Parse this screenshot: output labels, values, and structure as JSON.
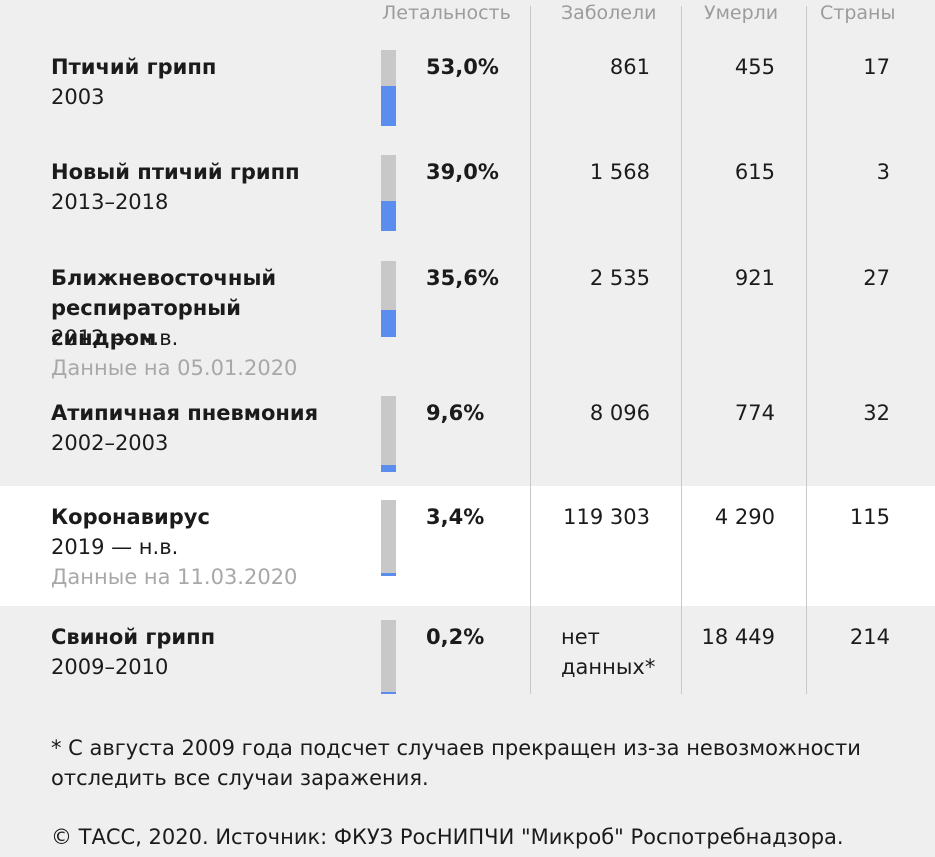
{
  "headers": {
    "lethality": "Летальность",
    "cases": "Заболели",
    "deaths": "Умерли",
    "countries": "Страны"
  },
  "colors": {
    "background": "#efefef",
    "highlight_row": "#ffffff",
    "bar_track": "#c8c8c8",
    "bar_fill": "#5b8def"
  },
  "chart_data": {
    "type": "table",
    "columns": [
      "Летальность",
      "Заболели",
      "Умерли",
      "Страны"
    ],
    "rows": [
      {
        "name": "Птичий грипп",
        "years": "2003",
        "note": "",
        "lethality": 53.0,
        "lethality_label": "53,0%",
        "cases": "861",
        "deaths": "455",
        "countries": "17",
        "highlight": false
      },
      {
        "name": "Новый птичий грипп",
        "years": "2013–2018",
        "note": "",
        "lethality": 39.0,
        "lethality_label": "39,0%",
        "cases": "1 568",
        "deaths": "615",
        "countries": "3",
        "highlight": false
      },
      {
        "name": "Ближневосточный респираторный синдром",
        "years": "2012 — н.в.",
        "note": "Данные на 05.01.2020",
        "lethality": 35.6,
        "lethality_label": "35,6%",
        "cases": "2 535",
        "deaths": "921",
        "countries": "27",
        "highlight": false
      },
      {
        "name": "Атипичная пневмония",
        "years": "2002–2003",
        "note": "",
        "lethality": 9.6,
        "lethality_label": "9,6%",
        "cases": "8 096",
        "deaths": "774",
        "countries": "32",
        "highlight": false
      },
      {
        "name": "Коронавирус",
        "years": "2019 — н.в.",
        "note": "Данные на 11.03.2020",
        "lethality": 3.4,
        "lethality_label": "3,4%",
        "cases": "119 303",
        "deaths": "4 290",
        "countries": "115",
        "highlight": true
      },
      {
        "name": "Свиной грипп",
        "years": "2009–2010",
        "note": "",
        "lethality": 0.2,
        "lethality_label": "0,2%",
        "cases": "нет данных*",
        "deaths": "18 449",
        "countries": "214",
        "highlight": false
      }
    ]
  },
  "footnote": "* С августа 2009 года подсчет случаев прекращен из-за невозможности отследить все случаи заражения.",
  "source": "© ТАСС, 2020. Источник: ФКУЗ РосНИПЧИ \"Микроб\" Роспотребнадзора."
}
